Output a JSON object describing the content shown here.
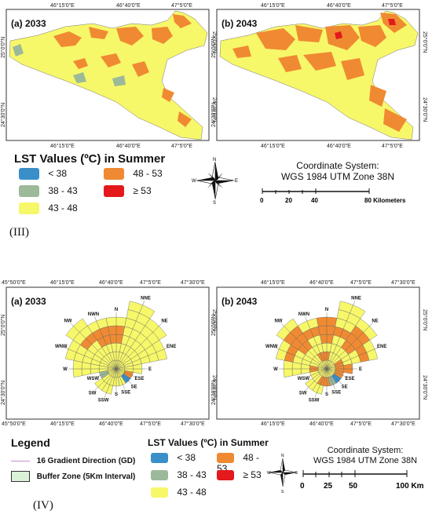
{
  "colors": {
    "lt38": "#3a8fc9",
    "c38_43": "#9cb99a",
    "c43_48": "#f7f76a",
    "c48_53": "#f08a32",
    "ge53": "#e3191c"
  },
  "section3": {
    "label": "(III)",
    "maps": [
      {
        "title": "(a) 2033",
        "top_ticks": [
          "46°15'0\"E",
          "46°40'0\"E",
          "47°5'0\"E"
        ],
        "bottom_ticks": [
          "46°15'0\"E",
          "46°40'0\"E",
          "47°5'0\"E"
        ],
        "left_ticks": [
          "25°0'0\"N",
          "24°30'0\"N"
        ],
        "right_ticks": [
          "25°0'0\"N",
          "24°30'0\"N"
        ]
      },
      {
        "title": "(b) 2043",
        "top_ticks": [
          "46°15'0\"E",
          "46°40'0\"E",
          "47°5'0\"E"
        ],
        "bottom_ticks": [
          "46°15'0\"E",
          "46°40'0\"E",
          "47°5'0\"E"
        ],
        "left_ticks": [
          "25°0'0\"N",
          "24°30'0\"N"
        ],
        "right_ticks": [
          "25°0'0\"N",
          "24°30'0\"N"
        ]
      }
    ],
    "legend": {
      "title": "LST Values (ºC) in Summer",
      "items": [
        {
          "label": "< 38",
          "color": "#3a8fc9"
        },
        {
          "label": "48 - 53",
          "color": "#f08a32"
        },
        {
          "label": "38 - 43",
          "color": "#9cb99a"
        },
        {
          "label": "≥ 53",
          "color": "#e3191c"
        },
        {
          "label": "43 - 48",
          "color": "#f7f76a"
        }
      ]
    },
    "coordinate_system": [
      "Coordinate System:",
      "WGS 1984 UTM Zone 38N"
    ],
    "scale": {
      "ticks": [
        "0",
        "20",
        "40",
        "80 Kilometers"
      ]
    },
    "compass": {
      "n": "N",
      "s": "S",
      "e": "E",
      "w": "W"
    }
  },
  "section4": {
    "label": "(IV)",
    "maps": [
      {
        "title": "(a) 2033",
        "top_ticks": [
          "45°50'0\"E",
          "46°15'0\"E",
          "46°40'0\"E",
          "47°5'0\"E",
          "47°30'0\"E"
        ],
        "bottom_ticks": [
          "45°50'0\"E",
          "46°15'0\"E",
          "46°40'0\"E",
          "47°5'0\"E",
          "47°30'0\"E"
        ],
        "left_ticks": [
          "25°0'0\"N",
          "24°30'0\"N"
        ],
        "right_ticks": [
          "25°0'0\"N",
          "24°30'0\"N"
        ]
      },
      {
        "title": "(b) 2043",
        "top_ticks": [
          "46°15'0\"E",
          "46°40'0\"E",
          "47°5'0\"E",
          "47°30'0\"E"
        ],
        "bottom_ticks": [
          "46°15'0\"E",
          "46°40'0\"E",
          "47°5'0\"E",
          "47°30'0\"E"
        ],
        "left_ticks": [
          "25°0'0\"N",
          "24°30'0\"N"
        ],
        "right_ticks": [
          "25°0'0\"N",
          "24°30'0\"N"
        ]
      }
    ],
    "directions": [
      "N",
      "NNE",
      "NE",
      "ENE",
      "E",
      "ESE",
      "SE",
      "SSE",
      "S",
      "SSW",
      "SW",
      "WSW",
      "W",
      "WNW",
      "NW",
      "NWN"
    ],
    "legend": {
      "title": "Legend",
      "gd_label": "16 Gradient Direction (GD)",
      "buffer_label": "Buffer Zone (5Km Interval)",
      "lst_title": "LST Values (ºC) in Summer",
      "items": [
        {
          "label": "< 38",
          "color": "#3a8fc9"
        },
        {
          "label": "48 - 53",
          "color": "#f08a32"
        },
        {
          "label": "38 - 43",
          "color": "#9cb99a"
        },
        {
          "label": "≥ 53",
          "color": "#e3191c"
        },
        {
          "label": "43 - 48",
          "color": "#f7f76a"
        }
      ]
    },
    "coordinate_system": [
      "Coordinate System:",
      "WGS 1984 UTM Zone 38N"
    ],
    "scale": {
      "ticks": [
        "0",
        "25",
        "50",
        "100 Km"
      ]
    },
    "compass": {
      "n": "N",
      "s": "S",
      "e": "E",
      "w": "W"
    }
  }
}
